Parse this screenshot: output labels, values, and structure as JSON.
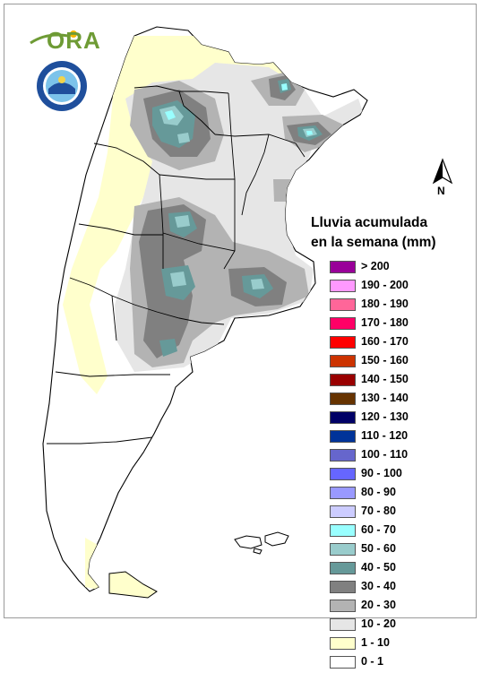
{
  "logos": {
    "ora_text": "ORA",
    "smn_seal_text": "SERVICIO METEOROLOGICO NACIONAL · ARGENTINA"
  },
  "north_arrow": {
    "label": "N"
  },
  "legend": {
    "title_line1": "Lluvia acumulada",
    "title_line2": "en la semana (mm)",
    "classes": [
      {
        "label": "> 200",
        "color": "#990099"
      },
      {
        "label": "190 - 200",
        "color": "#ff99ff"
      },
      {
        "label": "180 - 190",
        "color": "#ff6699"
      },
      {
        "label": "170 - 180",
        "color": "#ff0066"
      },
      {
        "label": "160 - 170",
        "color": "#ff0000"
      },
      {
        "label": "150 - 160",
        "color": "#cc3300"
      },
      {
        "label": "140 - 150",
        "color": "#990000"
      },
      {
        "label": "130 - 140",
        "color": "#663300"
      },
      {
        "label": "120 - 130",
        "color": "#000066"
      },
      {
        "label": "110 - 120",
        "color": "#003399"
      },
      {
        "label": "100 - 110",
        "color": "#6666cc"
      },
      {
        "label": "90 - 100",
        "color": "#6666ff"
      },
      {
        "label": "80 - 90",
        "color": "#9999ff"
      },
      {
        "label": "70 - 80",
        "color": "#ccccff"
      },
      {
        "label": "60 - 70",
        "color": "#99ffff"
      },
      {
        "label": "50 - 60",
        "color": "#99cccc"
      },
      {
        "label": "40 - 50",
        "color": "#669999"
      },
      {
        "label": "30 - 40",
        "color": "#808080"
      },
      {
        "label": "20 - 30",
        "color": "#b3b3b3"
      },
      {
        "label": "10 - 20",
        "color": "#e6e6e6"
      },
      {
        "label": "1 - 10",
        "color": "#ffffcc"
      },
      {
        "label": "0 - 1",
        "color": "#ffffff"
      }
    ]
  }
}
